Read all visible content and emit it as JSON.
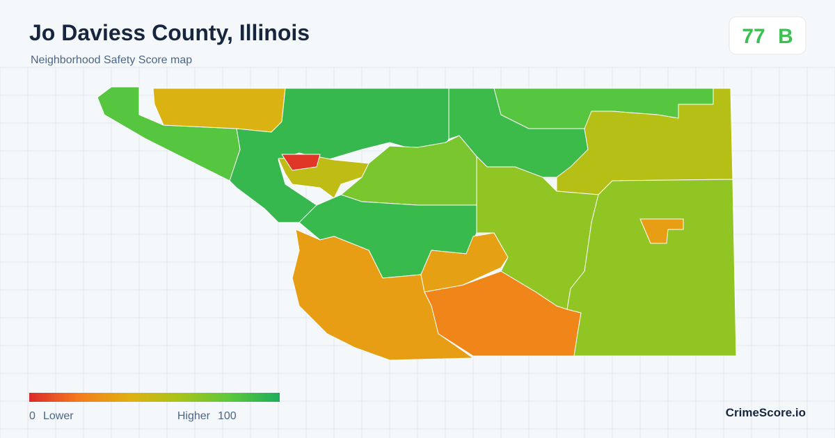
{
  "header": {
    "title": "Jo Daviess County, Illinois",
    "subtitle": "Neighborhood Safety Score map"
  },
  "score": {
    "value": 77,
    "grade": "B"
  },
  "map": {
    "regions": [
      {
        "score": 82
      },
      {
        "score": 42
      },
      {
        "score": 92
      },
      {
        "score": 52
      },
      {
        "score": 3
      },
      {
        "score": 72
      },
      {
        "score": 91
      },
      {
        "score": 33
      },
      {
        "score": 24
      },
      {
        "score": 34
      },
      {
        "score": 90
      },
      {
        "score": 82
      },
      {
        "score": 55
      },
      {
        "score": 66
      },
      {
        "score": 66
      },
      {
        "score": 33
      }
    ]
  },
  "legend": {
    "min": 0,
    "min_label": "Lower",
    "max": 100,
    "max_label": "Higher",
    "colors": [
      "#dc2a2a",
      "#f47c1c",
      "#e0b010",
      "#a8c418",
      "#5cc83c",
      "#1cae5a"
    ]
  },
  "brand": "CrimeScore.io"
}
